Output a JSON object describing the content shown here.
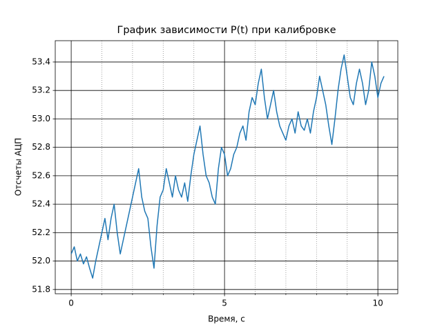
{
  "chart_data": {
    "type": "line",
    "title": "График зависимости P(t) при калибровке",
    "x_label": "Время, с",
    "y_label": "Отсчеты АЦП",
    "x": [
      0,
      0.1,
      0.2,
      0.3,
      0.4,
      0.5,
      0.6,
      0.7,
      0.8,
      0.9,
      1,
      1.1,
      1.2,
      1.3,
      1.4,
      1.5,
      1.6,
      1.7,
      1.8,
      1.9,
      2,
      2.1,
      2.2,
      2.3,
      2.4,
      2.5,
      2.6,
      2.7,
      2.8,
      2.9,
      3,
      3.1,
      3.2,
      3.3,
      3.4,
      3.5,
      3.6,
      3.7,
      3.8,
      3.9,
      4,
      4.1,
      4.2,
      4.3,
      4.4,
      4.5,
      4.6,
      4.7,
      4.8,
      4.9,
      5,
      5.1,
      5.2,
      5.3,
      5.4,
      5.5,
      5.6,
      5.7,
      5.8,
      5.9,
      6,
      6.1,
      6.2,
      6.3,
      6.4,
      6.5,
      6.6,
      6.7,
      6.8,
      6.9,
      7,
      7.1,
      7.2,
      7.3,
      7.4,
      7.5,
      7.6,
      7.7,
      7.8,
      7.9,
      8,
      8.1,
      8.2,
      8.3,
      8.4,
      8.5,
      8.6,
      8.7,
      8.8,
      8.9,
      9,
      9.1,
      9.2,
      9.3,
      9.4,
      9.5,
      9.6,
      9.7,
      9.8,
      9.9,
      10,
      10.1,
      10.2
    ],
    "series": [
      {
        "name": "P(t)",
        "color": "#1f77b4",
        "values": [
          52.05,
          52.1,
          52.0,
          52.05,
          51.98,
          52.03,
          51.95,
          51.88,
          52.0,
          52.1,
          52.2,
          52.3,
          52.15,
          52.3,
          52.4,
          52.2,
          52.05,
          52.15,
          52.25,
          52.35,
          52.45,
          52.55,
          52.65,
          52.45,
          52.35,
          52.3,
          52.1,
          51.95,
          52.25,
          52.45,
          52.5,
          52.65,
          52.55,
          52.45,
          52.6,
          52.5,
          52.45,
          52.55,
          52.42,
          52.6,
          52.75,
          52.85,
          52.95,
          52.75,
          52.6,
          52.55,
          52.45,
          52.4,
          52.65,
          52.8,
          52.75,
          52.6,
          52.65,
          52.75,
          52.8,
          52.9,
          52.95,
          52.85,
          53.05,
          53.15,
          53.1,
          53.25,
          53.35,
          53.15,
          53.0,
          53.1,
          53.2,
          53.05,
          52.95,
          52.9,
          52.85,
          52.95,
          53.0,
          52.9,
          53.05,
          52.95,
          52.92,
          53.0,
          52.9,
          53.05,
          53.15,
          53.3,
          53.2,
          53.1,
          52.95,
          52.82,
          53.0,
          53.2,
          53.35,
          53.45,
          53.3,
          53.15,
          53.1,
          53.25,
          53.35,
          53.25,
          53.1,
          53.2,
          53.4,
          53.3,
          53.15,
          53.25,
          53.3
        ]
      }
    ],
    "xlim": [
      -0.52,
      10.65
    ],
    "ylim": [
      51.77,
      53.55
    ],
    "xticks": [
      0,
      5,
      10
    ],
    "xminor": [
      1,
      2,
      3,
      4,
      6,
      7,
      8,
      9
    ],
    "yticks": [
      51.8,
      {
        "value": 52.0,
        "label": "52.0"
      },
      52.2,
      52.4,
      52.6,
      52.8,
      {
        "value": 53.0,
        "label": "53.0"
      },
      53.2,
      53.4
    ],
    "grid": true
  }
}
